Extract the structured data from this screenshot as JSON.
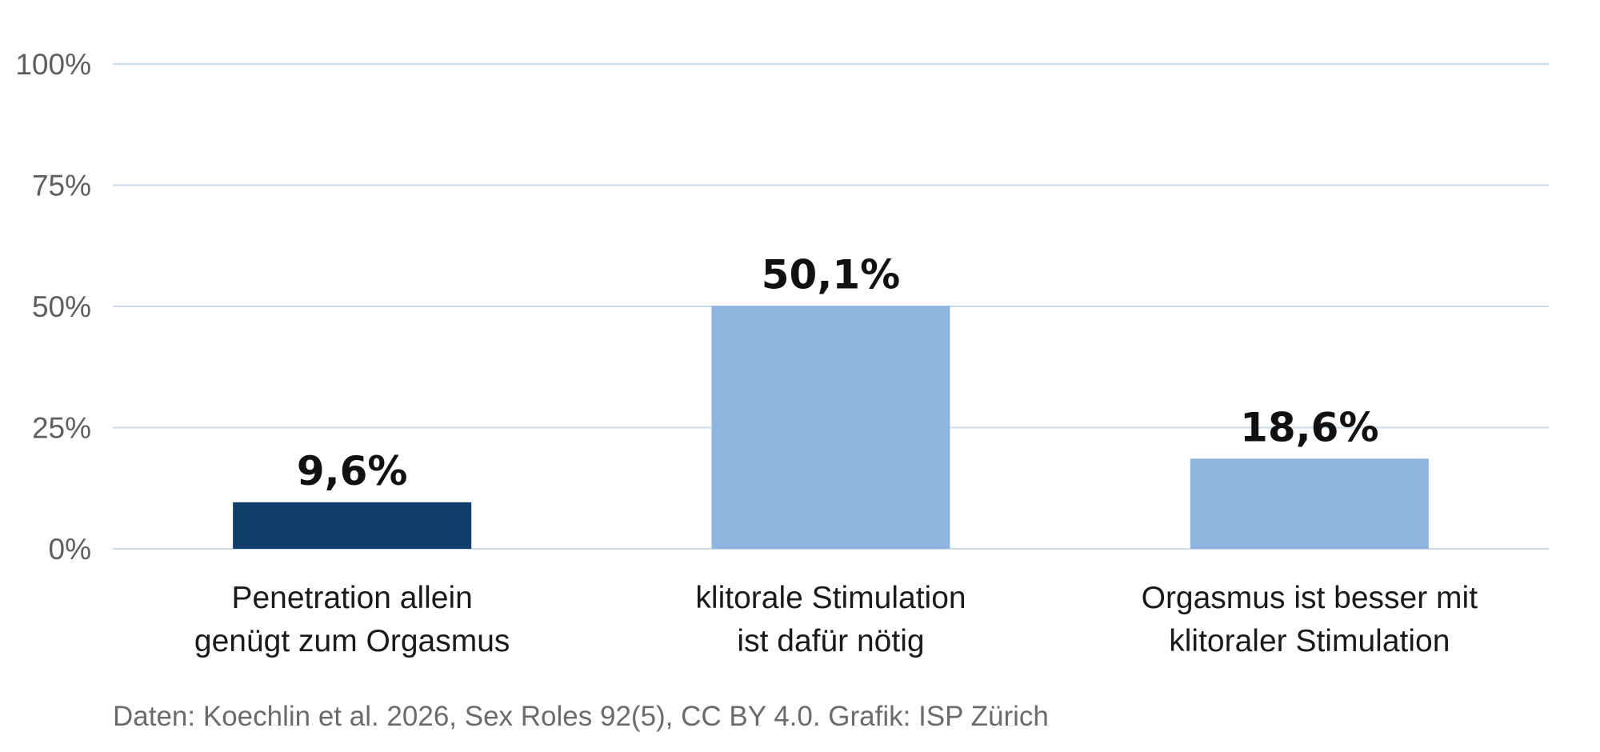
{
  "chart_data": {
    "type": "bar",
    "title": "",
    "xlabel": "",
    "ylabel": "",
    "ylim": [
      0,
      100
    ],
    "yticks": [
      0,
      25,
      50,
      75,
      100
    ],
    "ytick_labels": [
      "0%",
      "25%",
      "50%",
      "75%",
      "100%"
    ],
    "grid": true,
    "categories": [
      [
        "Penetration allein",
        "genügt zum Orgasmus"
      ],
      [
        "klitorale Stimulation",
        "ist dafür nötig"
      ],
      [
        "Orgasmus ist besser mit",
        "klitoraler Stimulation"
      ]
    ],
    "values": [
      9.6,
      50.1,
      18.6
    ],
    "value_labels": [
      "9,6%",
      "50,1%",
      "18,6%"
    ],
    "colors": [
      "#113d6b",
      "#8fb4de",
      "#8fb4de"
    ],
    "gridline_color": "#c8dcec"
  },
  "source_note": "Daten: Koechlin et al. 2026, Sex Roles 92(5), CC BY 4.0. Grafik: ISP Zürich"
}
